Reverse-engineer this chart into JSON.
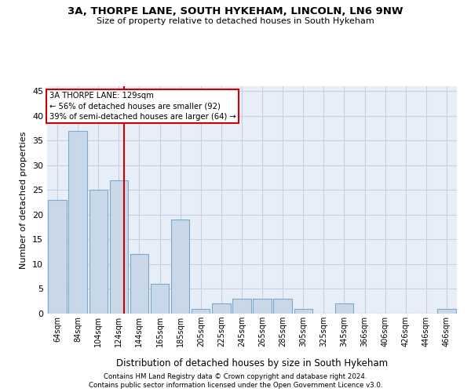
{
  "title_line1": "3A, THORPE LANE, SOUTH HYKEHAM, LINCOLN, LN6 9NW",
  "title_line2": "Size of property relative to detached houses in South Hykeham",
  "xlabel": "Distribution of detached houses by size in South Hykeham",
  "ylabel": "Number of detached properties",
  "footer_line1": "Contains HM Land Registry data © Crown copyright and database right 2024.",
  "footer_line2": "Contains public sector information licensed under the Open Government Licence v3.0.",
  "categories": [
    "64sqm",
    "84sqm",
    "104sqm",
    "124sqm",
    "144sqm",
    "165sqm",
    "185sqm",
    "205sqm",
    "225sqm",
    "245sqm",
    "265sqm",
    "285sqm",
    "305sqm",
    "325sqm",
    "345sqm",
    "366sqm",
    "406sqm",
    "426sqm",
    "446sqm",
    "466sqm"
  ],
  "values": [
    23,
    37,
    25,
    27,
    12,
    6,
    19,
    1,
    2,
    3,
    3,
    3,
    1,
    0,
    2,
    0,
    0,
    0,
    0,
    1
  ],
  "bar_color": "#c8d8e8",
  "bar_edgecolor": "#7aaac8",
  "bar_linewidth": 0.8,
  "grid_color": "#c8d0e0",
  "bg_color": "#e8eef8",
  "red_line_color": "#cc0000",
  "annotation_line1": "3A THORPE LANE: 129sqm",
  "annotation_line2": "← 56% of detached houses are smaller (92)",
  "annotation_line3": "39% of semi-detached houses are larger (64) →",
  "annotation_box_color": "#cc0000",
  "ylim": [
    0,
    46
  ],
  "yticks": [
    0,
    5,
    10,
    15,
    20,
    25,
    30,
    35,
    40,
    45
  ],
  "red_line_xindex": 3.25
}
